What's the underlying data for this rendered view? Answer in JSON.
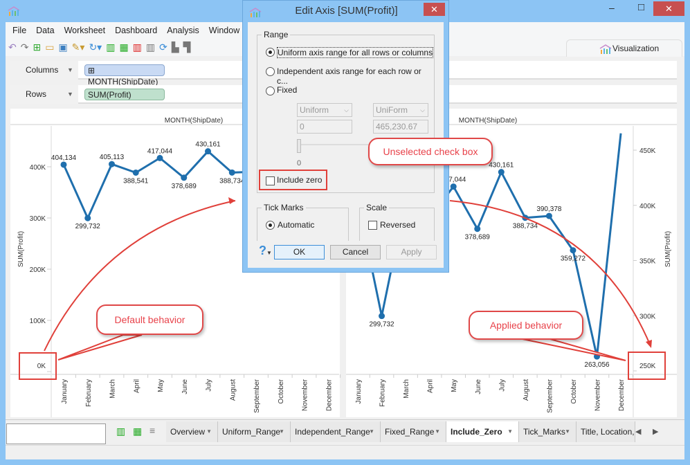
{
  "window": {
    "controls": {
      "minimize": "–",
      "maximize": "□",
      "close": "✕"
    }
  },
  "menu": [
    "File",
    "Data",
    "Worksheet",
    "Dashboard",
    "Analysis",
    "Window"
  ],
  "toolbar_icons": [
    "undo-icon",
    "redo-icon",
    "new-sheet-icon",
    "open-icon",
    "save-icon",
    "data-source-icon",
    "refresh-icon",
    "new-worksheet-icon",
    "new-dashboard-icon",
    "clear-sheet-icon",
    "swap-icon",
    "group-icon",
    "sort-icon"
  ],
  "visualization_tab": "Visualization",
  "shelves": {
    "columns": {
      "label": "Columns",
      "pill": "MONTH(ShipDate)"
    },
    "rows": {
      "label": "Rows",
      "pill": "SUM(Profit)"
    }
  },
  "colors": {
    "line": "#1f6fad",
    "callout": "#e8424a",
    "columns_pill": "#c9daf4",
    "rows_pill": "#bfe0cd",
    "frame": "#8cc4f4"
  },
  "chart_data": [
    {
      "type": "line",
      "title": "MONTH(ShipDate)",
      "ylabel": "SUM(Profit)",
      "ylim": [
        0,
        465000
      ],
      "axis_position": "left",
      "yticks": [
        "0K",
        "100K",
        "200K",
        "300K",
        "400K"
      ],
      "ytick_values": [
        0,
        100000,
        200000,
        300000,
        400000
      ],
      "categories": [
        "January",
        "February",
        "March",
        "April",
        "May",
        "June",
        "July",
        "August",
        "September",
        "October",
        "November",
        "December"
      ],
      "values": [
        404134,
        299732,
        405113,
        388541,
        417044,
        378689,
        430161,
        388734,
        390378,
        359272,
        263056,
        465231
      ],
      "labels": [
        "404,134",
        "299,732",
        "405,113",
        "388,541",
        "417,044",
        "378,689",
        "430,161",
        "388,734",
        "",
        "",
        "",
        ""
      ]
    },
    {
      "type": "line",
      "title": "MONTH(ShipDate)",
      "ylabel": "SUM(Profit)",
      "ylim": [
        250000,
        465000
      ],
      "axis_position": "right",
      "yticks": [
        "250K",
        "300K",
        "350K",
        "400K",
        "450K"
      ],
      "ytick_values": [
        250000,
        300000,
        350000,
        400000,
        450000
      ],
      "categories": [
        "January",
        "February",
        "March",
        "April",
        "May",
        "June",
        "July",
        "August",
        "September",
        "October",
        "November",
        "December"
      ],
      "values": [
        404134,
        299732,
        405113,
        388541,
        417044,
        378689,
        430161,
        388734,
        390378,
        359272,
        263056,
        465231
      ],
      "labels": [
        "",
        "299,732",
        "",
        "",
        "417,044",
        "378,689",
        "430,161",
        "388,734",
        "390,378",
        "359,272",
        "263,056",
        ""
      ]
    }
  ],
  "dialog": {
    "title": "Edit Axis [SUM(Profit)]",
    "range_group": "Range",
    "options": [
      "Uniform axis range for all rows or columns",
      "Independent axis range for each row or c...",
      "Fixed"
    ],
    "selected_option": 0,
    "fixed_start_mode": "Uniform",
    "fixed_end_mode": "UniForm",
    "fixed_start": "0",
    "fixed_end": "465,230.67",
    "slider_label": "0",
    "include_zero_label": "Include zero",
    "include_zero": false,
    "tick_marks_group": "Tick Marks",
    "tick_automatic": "Automatic",
    "scale_group": "Scale",
    "reversed_label": "Reversed",
    "reversed": false,
    "help": "?",
    "ok": "OK",
    "cancel": "Cancel",
    "apply": "Apply"
  },
  "annotations": {
    "unselected": "Unselected check box",
    "default": "Default behavior",
    "applied": "Applied behavior"
  },
  "sheet_tabs": [
    {
      "label": "Overview"
    },
    {
      "label": "Uniform_Range"
    },
    {
      "label": "Independent_Range"
    },
    {
      "label": "Fixed_Range"
    },
    {
      "label": "Include_Zero",
      "active": true
    },
    {
      "label": "Tick_Marks"
    },
    {
      "label": "Title, Location, a"
    }
  ]
}
